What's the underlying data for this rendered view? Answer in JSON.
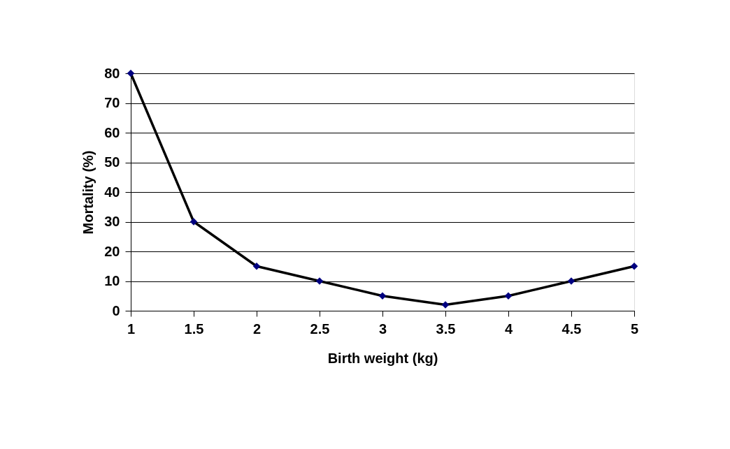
{
  "chart_data": {
    "type": "line",
    "xlabel": "Birth weight (kg)",
    "ylabel": "Mortality (%)",
    "x": [
      1,
      1.5,
      2,
      2.5,
      3,
      3.5,
      4,
      4.5,
      5
    ],
    "series": [
      {
        "color": "#000080",
        "values": [
          80,
          30,
          15,
          10,
          5,
          2,
          5,
          10,
          15
        ]
      }
    ],
    "xlim": [
      1,
      5
    ],
    "xticks": [
      1,
      1.5,
      2,
      2.5,
      3,
      3.5,
      4,
      4.5,
      5
    ],
    "ylim": [
      0,
      80
    ],
    "yticks": [
      0,
      10,
      20,
      30,
      40,
      50,
      60,
      70,
      80
    ],
    "grid": "y",
    "marker": "diamond",
    "line_style": "solid"
  }
}
